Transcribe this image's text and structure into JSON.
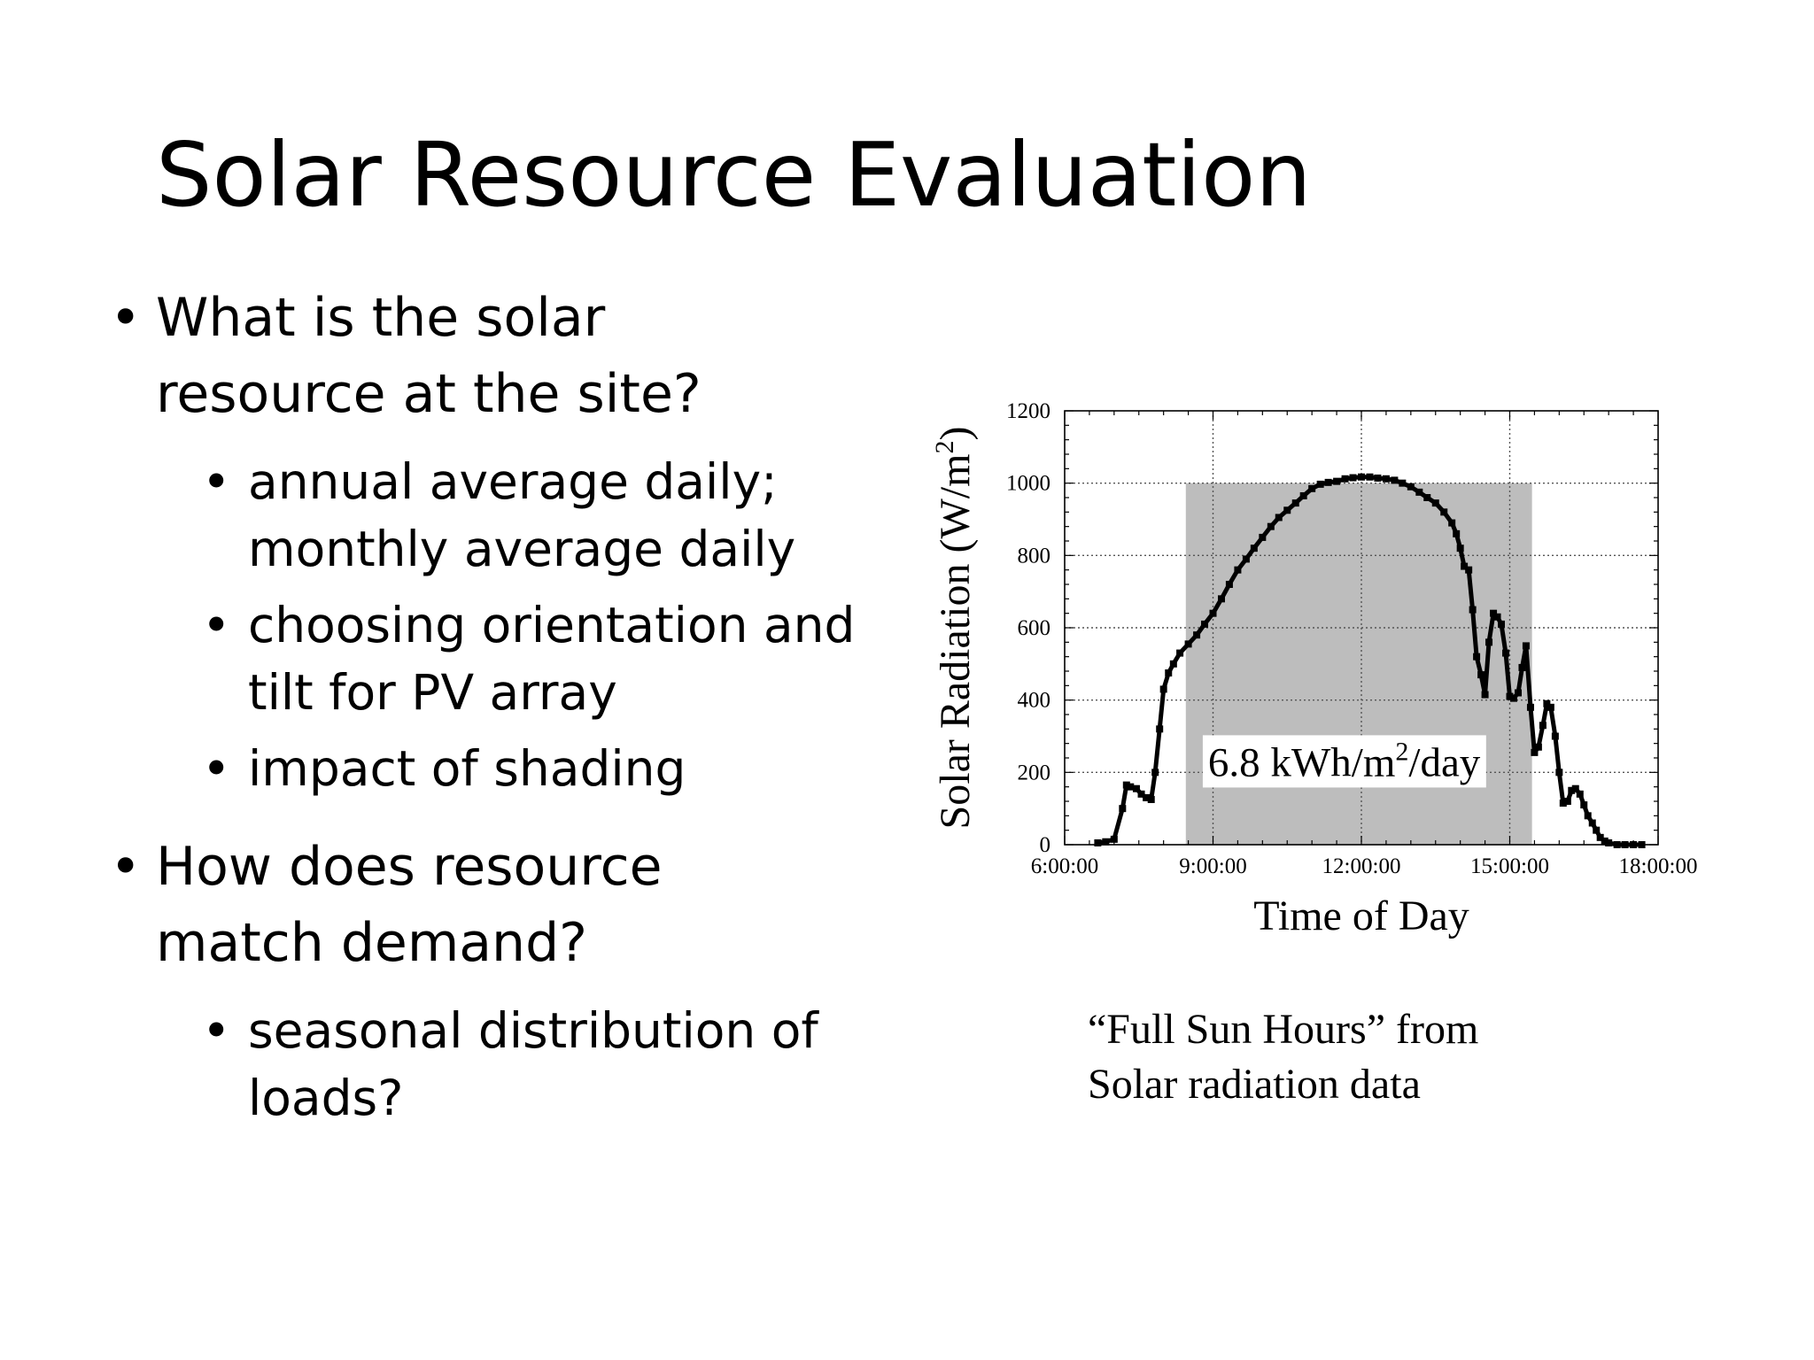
{
  "slide": {
    "title": "Solar Resource Evaluation",
    "bullets": [
      {
        "lines": [
          "What is the solar",
          "resource at the site?"
        ],
        "sub": [
          {
            "lines": [
              "annual average daily;",
              "monthly average daily"
            ]
          },
          {
            "lines": [
              "choosing orientation and",
              "tilt for PV array"
            ]
          },
          {
            "lines": [
              "impact of shading"
            ]
          }
        ]
      },
      {
        "lines": [
          "How does resource",
          "match demand?"
        ],
        "sub": [
          {
            "lines": [
              "seasonal distribution of",
              "loads?"
            ]
          }
        ]
      }
    ],
    "bullet_glyph": "•",
    "caption_lines": [
      "“Full Sun Hours” from",
      "Solar radiation data"
    ]
  },
  "chart_data": {
    "type": "line",
    "xlabel": "Time of Day",
    "ylabel_main": "Solar Radiation (W/m",
    "ylabel_sup": "2",
    "ylabel_close": ")",
    "x_unit": "hour of day",
    "xlim": [
      6,
      18
    ],
    "ylim": [
      0,
      1200
    ],
    "x_ticks": [
      6,
      9,
      12,
      15,
      18
    ],
    "x_tick_labels": [
      "6:00:00",
      "9:00:00",
      "12:00:00",
      "15:00:00",
      "18:00:00"
    ],
    "y_ticks": [
      0,
      200,
      400,
      600,
      800,
      1000,
      1200
    ],
    "y_tick_labels": [
      "0",
      "200",
      "400",
      "600",
      "800",
      "1000",
      "1200"
    ],
    "grid": true,
    "full_sun_rect": {
      "x_start": 8.45,
      "x_end": 15.45,
      "y": 1000
    },
    "annotation": {
      "main": "6.8 kWh/m",
      "sup": "2",
      "tail": "/day"
    },
    "colors": {
      "line": "#000000",
      "shade": "#bdbdbd",
      "grid": "#555555"
    },
    "series": [
      {
        "x": [
          6.67,
          6.83,
          7.0,
          7.17,
          7.25,
          7.33,
          7.45,
          7.55,
          7.65,
          7.75,
          7.83,
          7.92,
          8.0,
          8.1,
          8.2,
          8.33,
          8.5,
          8.67,
          8.83,
          9.0,
          9.17,
          9.33,
          9.5,
          9.67,
          9.83,
          10.0,
          10.17,
          10.33,
          10.5,
          10.67,
          10.83,
          11.0,
          11.17,
          11.33,
          11.5,
          11.67,
          11.83,
          12.0,
          12.17,
          12.33,
          12.5,
          12.67,
          12.83,
          13.0,
          13.17,
          13.33,
          13.5,
          13.67,
          13.83,
          13.92,
          14.0,
          14.08,
          14.17,
          14.25,
          14.33,
          14.42,
          14.5,
          14.58,
          14.67,
          14.75,
          14.83,
          14.92,
          15.0,
          15.08,
          15.17,
          15.25,
          15.33,
          15.42,
          15.5,
          15.58,
          15.67,
          15.75,
          15.83,
          15.92,
          16.0,
          16.08,
          16.17,
          16.25,
          16.33,
          16.42,
          16.5,
          16.58,
          16.67,
          16.75,
          16.83,
          16.92,
          17.0,
          17.17,
          17.33,
          17.5,
          17.67
        ],
        "y": [
          5,
          8,
          15,
          100,
          165,
          160,
          155,
          140,
          130,
          125,
          200,
          320,
          430,
          475,
          500,
          530,
          555,
          580,
          610,
          640,
          680,
          720,
          760,
          790,
          820,
          850,
          880,
          905,
          925,
          945,
          965,
          985,
          997,
          1002,
          1005,
          1012,
          1015,
          1017,
          1017,
          1014,
          1012,
          1008,
          1000,
          990,
          975,
          960,
          945,
          920,
          890,
          860,
          820,
          770,
          760,
          650,
          520,
          470,
          415,
          560,
          640,
          630,
          610,
          530,
          410,
          405,
          420,
          490,
          550,
          380,
          255,
          270,
          330,
          390,
          380,
          300,
          200,
          115,
          120,
          150,
          155,
          140,
          110,
          80,
          60,
          40,
          20,
          10,
          5,
          0,
          0,
          0,
          0
        ]
      }
    ]
  }
}
